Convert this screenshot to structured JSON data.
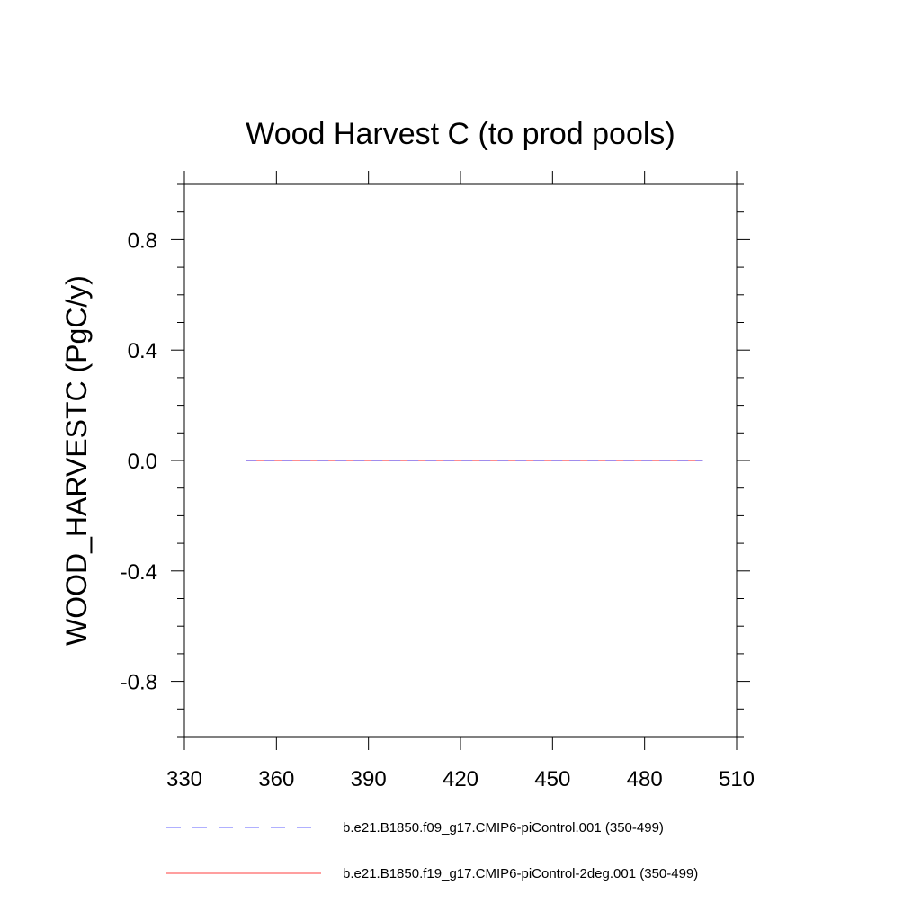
{
  "chart_data": {
    "type": "line",
    "title": "Wood Harvest C (to prod pools)",
    "xlabel": "",
    "ylabel": "WOOD_HARVESTC  (PgC/y)",
    "xlim": [
      330,
      510
    ],
    "ylim": [
      -1.0,
      1.0
    ],
    "x_ticks": [
      330,
      360,
      390,
      420,
      450,
      480,
      510
    ],
    "x_tick_labels": [
      "330",
      "360",
      "390",
      "420",
      "450",
      "480",
      "510"
    ],
    "y_ticks": [
      -0.8,
      -0.4,
      0.0,
      0.4,
      0.8
    ],
    "y_tick_labels": [
      "-0.8",
      "-0.4",
      "0.0",
      "0.4",
      "0.8"
    ],
    "grid": false,
    "legend_position": "bottom",
    "series": [
      {
        "name": "b.e21.B1850.f09_g17.CMIP6-piControl.001 (350-499)",
        "color": "#8080ff",
        "dash": "dashed",
        "x": [
          350,
          499
        ],
        "y": [
          0.0,
          0.0
        ]
      },
      {
        "name": "b.e21.B1850.f19_g17.CMIP6-piControl-2deg.001 (350-499)",
        "color": "#ff6666",
        "dash": "solid",
        "x": [
          350,
          499
        ],
        "y": [
          0.0,
          0.0
        ]
      }
    ]
  }
}
